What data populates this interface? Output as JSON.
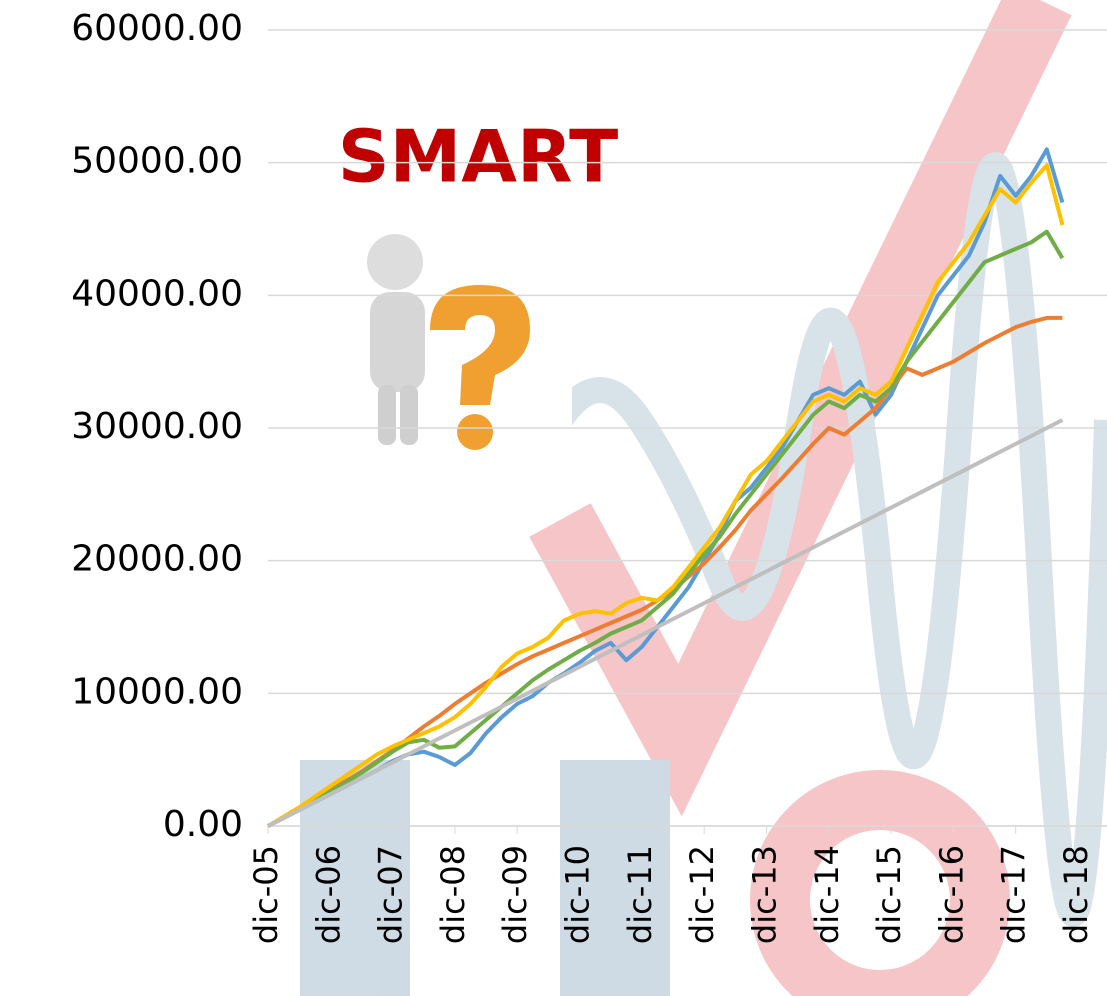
{
  "chart_data": {
    "type": "line",
    "annotation": "SMART",
    "categories": [
      "dic-05",
      null,
      null,
      null,
      "dic-06",
      null,
      null,
      null,
      "dic-07",
      null,
      null,
      null,
      "dic-08",
      null,
      null,
      null,
      "dic-09",
      null,
      null,
      null,
      "dic-10",
      null,
      null,
      null,
      "dic-11",
      null,
      null,
      null,
      "dic-12",
      null,
      null,
      null,
      "dic-13",
      null,
      null,
      null,
      "dic-14",
      null,
      null,
      null,
      "dic-15",
      null,
      null,
      null,
      "dic-16",
      null,
      null,
      null,
      "dic-17",
      null,
      null,
      null,
      "dic-18"
    ],
    "series": [
      {
        "color": "#5b9bd5",
        "values": [
          0,
          600,
          1200,
          1800,
          2400,
          3000,
          3600,
          4200,
          4900,
          5400,
          5600,
          5200,
          4600,
          5500,
          7000,
          8200,
          9200,
          9800,
          10800,
          11500,
          12300,
          13200,
          13800,
          12500,
          13500,
          15000,
          16500,
          18000,
          20000,
          22000,
          24500,
          25500,
          27000,
          28500,
          30500,
          32500,
          33000,
          32500,
          33500,
          31000,
          32500,
          35000,
          37500,
          40000,
          41500,
          43000,
          45500,
          49000,
          47500,
          49000,
          51000,
          47000,
          null
        ]
      },
      {
        "color": "#ed7d31",
        "values": [
          0,
          600,
          1300,
          2000,
          2700,
          3400,
          4100,
          4900,
          5700,
          6600,
          7500,
          8300,
          9200,
          10000,
          10800,
          11500,
          12200,
          12800,
          13300,
          13800,
          14300,
          14800,
          15300,
          15800,
          16300,
          17000,
          17800,
          18800,
          19800,
          21000,
          22300,
          23800,
          25000,
          26200,
          27500,
          28800,
          30000,
          29500,
          30500,
          31500,
          33000,
          34500,
          34000,
          34500,
          35000,
          35700,
          36400,
          37000,
          37600,
          38000,
          38300,
          38300,
          null
        ]
      },
      {
        "color": "#70ad47",
        "values": [
          0,
          600,
          1200,
          1900,
          2600,
          3300,
          4000,
          4800,
          5600,
          6300,
          6500,
          5900,
          6000,
          7000,
          8000,
          9000,
          10000,
          11000,
          11800,
          12500,
          13200,
          13800,
          14500,
          15000,
          15500,
          16500,
          17500,
          19000,
          20500,
          21800,
          23500,
          25000,
          26500,
          28000,
          29500,
          31000,
          32000,
          31500,
          32500,
          32000,
          33000,
          35000,
          36500,
          38000,
          39500,
          41000,
          42500,
          43000,
          43500,
          44000,
          44800,
          42800,
          null
        ]
      },
      {
        "color": "#ffc000",
        "values": [
          0,
          700,
          1400,
          2200,
          3000,
          3800,
          4600,
          5400,
          6000,
          6500,
          7000,
          7500,
          8200,
          9200,
          10500,
          12000,
          13000,
          13500,
          14200,
          15500,
          16000,
          16200,
          16000,
          16800,
          17200,
          17000,
          18000,
          19500,
          21000,
          22500,
          24500,
          26500,
          27500,
          29000,
          30500,
          32000,
          32500,
          32000,
          33000,
          32500,
          33500,
          36000,
          38500,
          41000,
          42500,
          44000,
          46000,
          48000,
          47000,
          48500,
          49800,
          45300,
          null
        ]
      },
      {
        "color": "#bfbfbf",
        "values": [
          0,
          600,
          1200,
          1800,
          2400,
          3000,
          3600,
          4200,
          4800,
          5400,
          6000,
          6600,
          7200,
          7800,
          8400,
          9000,
          9600,
          10200,
          10800,
          11400,
          12000,
          12600,
          13200,
          13800,
          14400,
          15000,
          15600,
          16200,
          16800,
          17400,
          18000,
          18600,
          19200,
          19800,
          20400,
          21000,
          21600,
          22200,
          22800,
          23400,
          24000,
          24600,
          25200,
          25800,
          26400,
          27000,
          27600,
          28200,
          28800,
          29400,
          30000,
          30600,
          null
        ]
      }
    ],
    "ylim": [
      0,
      60000
    ],
    "yticks": [
      {
        "value": 0,
        "label": "0.00"
      },
      {
        "value": 10000,
        "label": "10000.00"
      },
      {
        "value": 20000,
        "label": "20000.00"
      },
      {
        "value": 30000,
        "label": "30000.00"
      },
      {
        "value": 40000,
        "label": "40000.00"
      },
      {
        "value": 50000,
        "label": "50000.00"
      },
      {
        "value": 60000,
        "label": "60000.00"
      }
    ],
    "grid": true
  }
}
